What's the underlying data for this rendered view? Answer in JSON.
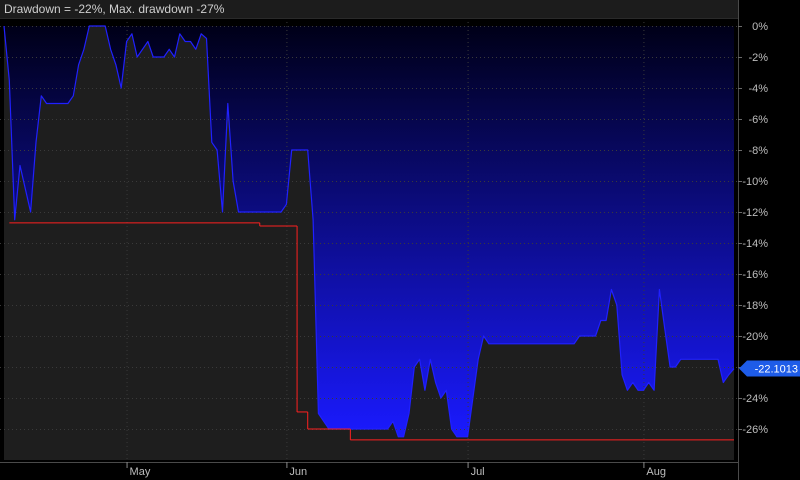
{
  "header": {
    "title": "Drawdown = -22%, Max. drawdown -27%"
  },
  "colors": {
    "background": "#000000",
    "panel": "#1e1e1e",
    "grid": "#3a3a3a",
    "line": "#2020ff",
    "fill_top": "#000018",
    "fill_bottom": "#1a1aff",
    "max_drawdown": "#ff2020",
    "current_badge": "#1e5ce8"
  },
  "chart_data": {
    "type": "area",
    "title": "Drawdown = -22%, Max. drawdown -27%",
    "y_axis": {
      "unit": "%",
      "ylim": [
        -28,
        0
      ],
      "ticks": [
        0,
        -2,
        -4,
        -6,
        -8,
        -10,
        -12,
        -14,
        -16,
        -18,
        -20,
        -22,
        -24,
        -26
      ],
      "tick_labels": [
        "0%",
        "-2%",
        "-4%",
        "-6%",
        "-8%",
        "-10%",
        "-12%",
        "-14%",
        "-16%",
        "-18%",
        "-20%",
        "-22%",
        "-24%",
        "-26%"
      ],
      "side": "right"
    },
    "x_axis": {
      "domain": [
        0,
        137
      ],
      "tick_positions": [
        23,
        53,
        87,
        120
      ],
      "tick_labels": [
        "May",
        "Jun",
        "Jul",
        "Aug"
      ]
    },
    "current_value_label": "-22.1013",
    "current_value": -22.1,
    "grid": true,
    "series": [
      {
        "type": "drawdown",
        "x": [
          0,
          1,
          2,
          3,
          4,
          5,
          6,
          7,
          8,
          9,
          10,
          11,
          12,
          13,
          14,
          15,
          16,
          17,
          18,
          19,
          20,
          21,
          22,
          23,
          24,
          25,
          26,
          27,
          28,
          29,
          30,
          31,
          32,
          33,
          34,
          35,
          36,
          37,
          38,
          39,
          40,
          41,
          42,
          43,
          44,
          45,
          46,
          47,
          48,
          49,
          50,
          51,
          52,
          53,
          54,
          55,
          56,
          57,
          58,
          59,
          60,
          61,
          62,
          63,
          64,
          65,
          66,
          67,
          68,
          69,
          70,
          71,
          72,
          73,
          74,
          75,
          76,
          77,
          78,
          79,
          80,
          81,
          82,
          83,
          84,
          85,
          86,
          87,
          88,
          89,
          90,
          91,
          92,
          93,
          94,
          95,
          96,
          97,
          98,
          99,
          100,
          101,
          102,
          103,
          104,
          105,
          106,
          107,
          108,
          109,
          110,
          111,
          112,
          113,
          114,
          115,
          116,
          117,
          118,
          119,
          120,
          121,
          122,
          123,
          124,
          125,
          126,
          127,
          128,
          129,
          130,
          131,
          132,
          133,
          134,
          135,
          136,
          137
        ],
        "values": [
          0,
          -3.5,
          -12.5,
          -9,
          -10.5,
          -12,
          -7.5,
          -4.5,
          -5,
          -5,
          -5,
          -5,
          -5,
          -4.5,
          -2.5,
          -1.5,
          0,
          0,
          0,
          0,
          -1.5,
          -2.5,
          -4,
          -1,
          -0.5,
          -2,
          -1.5,
          -1,
          -2,
          -2,
          -2,
          -1.5,
          -2,
          -0.5,
          -1,
          -1,
          -1.5,
          -0.5,
          -0.8,
          -7.5,
          -8,
          -12,
          -5,
          -10,
          -12,
          -12,
          -12,
          -12,
          -12,
          -12,
          -12,
          -12,
          -12,
          -11.5,
          -8,
          -8,
          -8,
          -8,
          -12.5,
          -25,
          -25.5,
          -26,
          -26,
          -26,
          -26,
          -26,
          -26,
          -26,
          -26,
          -26,
          -26,
          -26,
          -26,
          -25.5,
          -26.5,
          -26.5,
          -25,
          -22,
          -21.5,
          -23.5,
          -21.5,
          -23,
          -24,
          -23.5,
          -26,
          -26.5,
          -26.5,
          -26.5,
          -24,
          -21.5,
          -20,
          -20.5,
          -20.5,
          -20.5,
          -20.5,
          -20.5,
          -20.5,
          -20.5,
          -20.5,
          -20.5,
          -20.5,
          -20.5,
          -20.5,
          -20.5,
          -20.5,
          -20.5,
          -20.5,
          -20.5,
          -20,
          -20,
          -20,
          -20,
          -19,
          -19,
          -17,
          -18,
          -22.5,
          -23.5,
          -23,
          -23.5,
          -23.5,
          -23,
          -23.5,
          -17,
          -19.5,
          -22,
          -22,
          -21.5,
          -21.5,
          -21.5,
          -21.5,
          -21.5,
          -21.5,
          -21.5,
          -21.5,
          -23,
          -22.5,
          -22.1
        ]
      },
      {
        "type": "max_drawdown_step",
        "segments": [
          {
            "x0": 1,
            "x1": 48,
            "y": -12.7
          },
          {
            "x0": 48,
            "x1": 55,
            "y": -12.9
          },
          {
            "x0": 55,
            "x1": 57,
            "y": -24.9
          },
          {
            "x0": 57,
            "x1": 65,
            "y": -26.0
          },
          {
            "x0": 65,
            "x1": 137,
            "y": -26.7
          }
        ]
      }
    ]
  }
}
